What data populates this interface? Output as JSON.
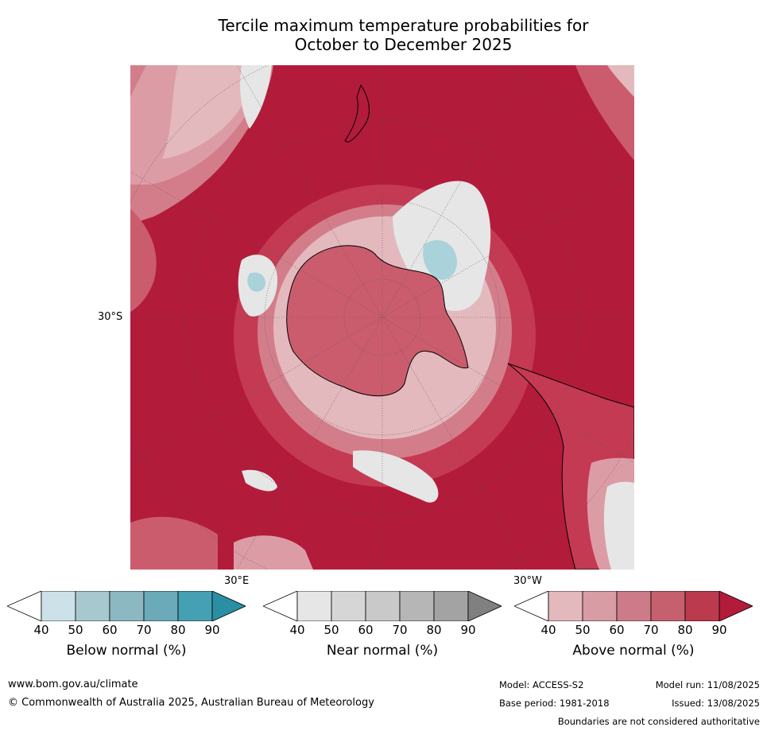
{
  "title_line1": "Tercile maximum temperature probabilities for",
  "title_line2": "October to December 2025",
  "map": {
    "lat_label": "30°S",
    "lon_label_east": "30°E",
    "lon_label_west": "30°W",
    "colors": {
      "ocean_hot": "#b31b3b",
      "above_80": "#c43a52",
      "above_70": "#cb5c6d",
      "above_60": "#d47d8a",
      "above_50": "#dc9ca6",
      "above_40": "#e3b9be",
      "near_normal": "#e6e6e6",
      "below_normal": "#a9d2db",
      "coast": "#000000"
    }
  },
  "colorbars": [
    {
      "label": "Below normal (%)",
      "ticks": [
        "40",
        "50",
        "60",
        "70",
        "80",
        "90"
      ],
      "colors": [
        "#ffffff",
        "#cde2e8",
        "#a8c8cf",
        "#8bb8c1",
        "#6aaab9",
        "#44a0b2",
        "#2b8fa3"
      ]
    },
    {
      "label": "Near normal (%)",
      "ticks": [
        "40",
        "50",
        "60",
        "70",
        "80",
        "90"
      ],
      "colors": [
        "#ffffff",
        "#e6e6e6",
        "#d6d6d6",
        "#c9c9c9",
        "#b6b6b6",
        "#a3a3a3",
        "#808080"
      ]
    },
    {
      "label": "Above normal (%)",
      "ticks": [
        "40",
        "50",
        "60",
        "70",
        "80",
        "90"
      ],
      "colors": [
        "#ffffff",
        "#e3b9be",
        "#d89ca5",
        "#cd7b88",
        "#c6606e",
        "#bc3a4e",
        "#b31b3b"
      ]
    }
  ],
  "footer": {
    "website": "www.bom.gov.au/climate",
    "copyright": "© Commonwealth of Australia 2025, Australian Bureau of Meteorology",
    "model": "Model: ACCESS-S2",
    "base_period": "Base period: 1981-2018",
    "model_run": "Model run: 11/08/2025",
    "issued": "Issued: 13/08/2025",
    "disclaimer": "Boundaries are not considered authoritative"
  }
}
